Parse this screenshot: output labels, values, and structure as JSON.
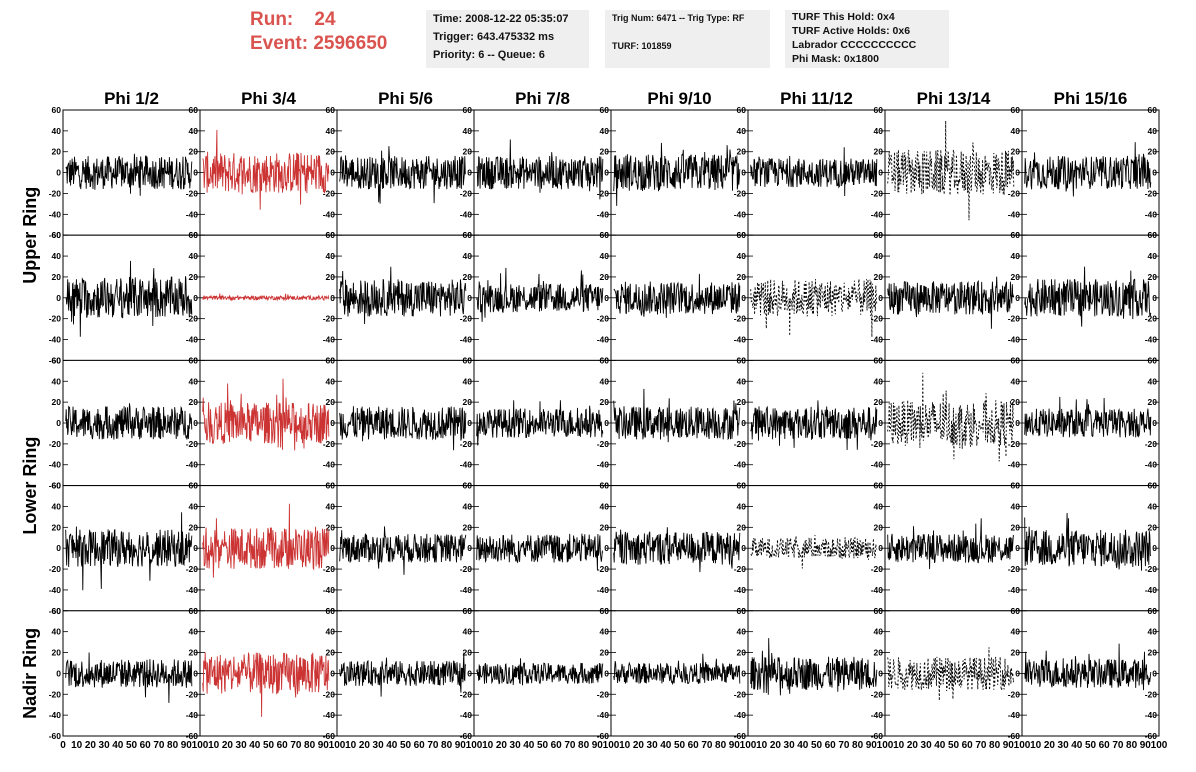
{
  "header": {
    "run_label": "Run:",
    "run_value": "24",
    "event_label": "Event:",
    "event_value": "2596650",
    "time": "Time: 2008-12-22 05:35:07",
    "trigger": "Trigger: 643.475332 ms",
    "priority": "Priority: 6 -- Queue: 6",
    "trig_num": "Trig Num: 6471 -- Trig Type: RF",
    "turf": "TURF: 101859",
    "turf_hold": "TURF This Hold: 0x4",
    "turf_active": "TURF Active Holds: 0x6",
    "labrador": "Labrador CCCCCCCCCC",
    "phi_mask": "Phi Mask: 0x1800"
  },
  "columns": [
    "Phi 1/2",
    "Phi 3/4",
    "Phi 5/6",
    "Phi 7/8",
    "Phi 9/10",
    "Phi 11/12",
    "Phi 13/14",
    "Phi 15/16"
  ],
  "rows": [
    "Upper Ring",
    "Lower Ring",
    "Nadir Ring"
  ],
  "colors": {
    "accent": "#d9534f",
    "trace": "#000000",
    "highlight": "#cc3333"
  },
  "chart_data": {
    "type": "line",
    "panels": "5x8 grid of waveform panels",
    "xlim": [
      0,
      100
    ],
    "ylim": [
      -60,
      60
    ],
    "y_ticks": [
      "60",
      "40",
      "20",
      "0",
      "-20",
      "-40",
      "-60"
    ],
    "x_ticks": [
      "0",
      "10",
      "20",
      "30",
      "40",
      "50",
      "60",
      "70",
      "80",
      "90",
      "100"
    ],
    "highlight_column": "Phi 3/4",
    "dashed_panels": [
      [
        0,
        6
      ],
      [
        1,
        5
      ],
      [
        2,
        6
      ],
      [
        3,
        5
      ],
      [
        4,
        6
      ]
    ],
    "amplitude": [
      [
        16,
        20,
        16,
        16,
        18,
        14,
        22,
        16
      ],
      [
        20,
        2,
        18,
        14,
        16,
        18,
        16,
        18
      ],
      [
        16,
        20,
        16,
        14,
        16,
        16,
        22,
        14
      ],
      [
        18,
        20,
        14,
        14,
        16,
        10,
        14,
        18
      ],
      [
        14,
        20,
        12,
        10,
        10,
        16,
        16,
        14
      ]
    ]
  }
}
